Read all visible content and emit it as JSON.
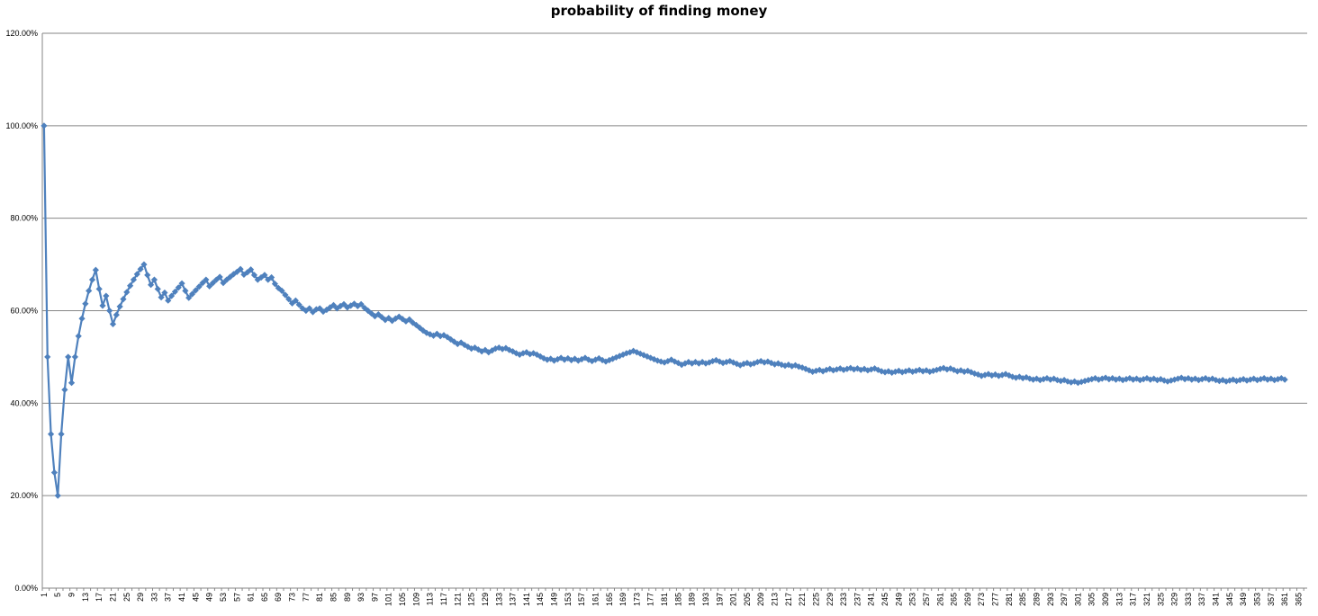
{
  "chart_data": {
    "type": "line",
    "title": "probability of finding money",
    "xlabel": "",
    "ylabel": "",
    "x_range": [
      1,
      367
    ],
    "x_tick_labels": [
      1,
      5,
      9,
      13,
      17,
      21,
      25,
      29,
      33,
      37,
      41,
      45,
      49,
      53,
      57,
      61,
      65,
      69,
      73,
      77,
      81,
      85,
      89,
      93,
      97,
      101,
      105,
      109,
      113,
      117,
      121,
      125,
      129,
      133,
      137,
      141,
      145,
      149,
      153,
      157,
      161,
      165,
      169,
      173,
      177,
      181,
      185,
      189,
      193,
      197,
      201,
      205,
      209,
      213,
      217,
      221,
      225,
      229,
      233,
      237,
      241,
      245,
      249,
      253,
      257,
      261,
      265,
      269,
      273,
      277,
      281,
      285,
      289,
      293,
      297,
      301,
      305,
      309,
      313,
      317,
      321,
      325,
      329,
      333,
      337,
      341,
      345,
      349,
      353,
      357,
      361,
      365
    ],
    "ylim": [
      0,
      120
    ],
    "y_ticks": [
      0,
      20,
      40,
      60,
      80,
      100,
      120
    ],
    "y_tick_labels": [
      "0.00%",
      "20.00%",
      "40.00%",
      "60.00%",
      "80.00%",
      "100.00%",
      "120.00%"
    ],
    "grid": "horizontal",
    "legend": "none",
    "color": "#4f81bd",
    "marker": "diamond",
    "series": [
      {
        "values": [
          100,
          50,
          33.3,
          25,
          20,
          33.3,
          42.9,
          50,
          44.4,
          50,
          54.5,
          58.3,
          61.5,
          64.3,
          66.7,
          68.8,
          64.7,
          61.1,
          63.2,
          60,
          57.1,
          59.1,
          60.9,
          62.5,
          64,
          65.4,
          66.7,
          67.9,
          69,
          70,
          67.7,
          65.6,
          66.7,
          64.7,
          62.9,
          63.9,
          62.2,
          63.2,
          64.1,
          65,
          65.9,
          64.3,
          62.8,
          63.6,
          64.4,
          65.2,
          66,
          66.7,
          65.3,
          66,
          66.7,
          67.3,
          66,
          66.7,
          67.3,
          67.9,
          68.4,
          69,
          67.8,
          68.3,
          68.9,
          67.7,
          66.7,
          67.2,
          67.7,
          66.7,
          67.2,
          65.8,
          64.9,
          64.3,
          63.4,
          62.5,
          61.6,
          62.2,
          61.3,
          60.5,
          60,
          60.5,
          59.7,
          60.3,
          60.5,
          59.8,
          60.2,
          60.7,
          61.2,
          60.5,
          61,
          61.4,
          60.7,
          61.1,
          61.5,
          61,
          61.4,
          60.6,
          60,
          59.4,
          58.8,
          59.2,
          58.6,
          58,
          58.4,
          57.8,
          58.3,
          58.7,
          58.2,
          57.7,
          58.1,
          57.4,
          56.9,
          56.3,
          55.7,
          55.2,
          54.9,
          54.6,
          55,
          54.5,
          54.7,
          54.3,
          53.8,
          53.3,
          52.8,
          53.1,
          52.6,
          52.2,
          51.8,
          52,
          51.6,
          51.2,
          51.5,
          51,
          51.4,
          51.8,
          52,
          51.7,
          51.9,
          51.5,
          51.2,
          50.8,
          50.5,
          50.8,
          51,
          50.6,
          50.8,
          50.5,
          50.1,
          49.7,
          49.4,
          49.6,
          49.2,
          49.5,
          49.8,
          49.4,
          49.7,
          49.3,
          49.6,
          49.2,
          49.5,
          49.8,
          49.4,
          49.1,
          49.4,
          49.7,
          49.3,
          49,
          49.3,
          49.6,
          49.9,
          50.2,
          50.5,
          50.8,
          51,
          51.3,
          51,
          50.7,
          50.4,
          50.1,
          49.8,
          49.5,
          49.2,
          49,
          48.8,
          49.1,
          49.4,
          49,
          48.7,
          48.3,
          48.6,
          48.9,
          48.6,
          48.9,
          48.6,
          48.9,
          48.6,
          48.8,
          49.1,
          49.3,
          49,
          48.7,
          48.9,
          49.1,
          48.8,
          48.5,
          48.2,
          48.5,
          48.7,
          48.4,
          48.6,
          48.9,
          49.1,
          48.8,
          49,
          48.7,
          48.4,
          48.6,
          48.3,
          48.1,
          48.3,
          48,
          48.2,
          47.9,
          47.7,
          47.4,
          47.1,
          46.8,
          47,
          47.2,
          46.9,
          47.2,
          47.4,
          47.1,
          47.3,
          47.5,
          47.2,
          47.4,
          47.6,
          47.3,
          47.5,
          47.2,
          47.4,
          47.1,
          47.3,
          47.5,
          47.2,
          46.9,
          46.7,
          46.9,
          46.6,
          46.8,
          47,
          46.7,
          46.9,
          47.1,
          46.8,
          47,
          47.2,
          46.9,
          47.1,
          46.8,
          47,
          47.2,
          47.4,
          47.6,
          47.3,
          47.5,
          47.2,
          46.9,
          47.1,
          46.8,
          47,
          46.7,
          46.4,
          46.2,
          45.9,
          46.1,
          46.3,
          46,
          46.2,
          45.9,
          46.1,
          46.3,
          46,
          45.7,
          45.5,
          45.7,
          45.4,
          45.6,
          45.3,
          45.1,
          45.3,
          45,
          45.2,
          45.4,
          45.1,
          45.3,
          45,
          44.8,
          45,
          44.7,
          44.5,
          44.7,
          44.4,
          44.6,
          44.8,
          45,
          45.2,
          45.4,
          45.1,
          45.3,
          45.5,
          45.2,
          45.4,
          45.1,
          45.3,
          45,
          45.2,
          45.4,
          45.1,
          45.3,
          45,
          45.2,
          45.4,
          45.1,
          45.3,
          45,
          45.2,
          44.9,
          44.7,
          44.9,
          45.1,
          45.3,
          45.5,
          45.2,
          45.4,
          45.1,
          45.3,
          45,
          45.2,
          45.4,
          45.1,
          45.3,
          45,
          44.8,
          45,
          44.7,
          44.9,
          45.1,
          44.8,
          45,
          45.2,
          44.9,
          45.1,
          45.3,
          45,
          45.2,
          45.4,
          45.1,
          45.3,
          45,
          45.2,
          45.4,
          45.1
        ]
      }
    ]
  }
}
